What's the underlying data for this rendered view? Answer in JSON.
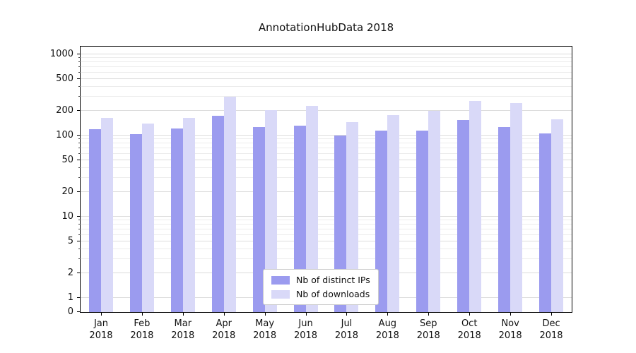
{
  "chart_data": {
    "type": "bar",
    "title": "AnnotationHubData 2018",
    "categories": [
      "Jan",
      "Feb",
      "Mar",
      "Apr",
      "May",
      "Jun",
      "Jul",
      "Aug",
      "Sep",
      "Oct",
      "Nov",
      "Dec"
    ],
    "year": "2018",
    "series": [
      {
        "name": "Nb of distinct IPs",
        "color": "#9b9bef",
        "values": [
          120,
          105,
          122,
          175,
          128,
          133,
          100,
          115,
          115,
          155,
          128,
          106
        ]
      },
      {
        "name": "Nb of downloads",
        "color": "#d9d9f8",
        "values": [
          165,
          142,
          165,
          300,
          205,
          230,
          145,
          178,
          200,
          265,
          250,
          160
        ]
      }
    ],
    "y_axis": {
      "scale": "symlog",
      "ticks": [
        0,
        1,
        2,
        5,
        10,
        20,
        50,
        100,
        200,
        500,
        1000
      ]
    },
    "grid": true,
    "legend_position": "lower-center-inside",
    "colors": {
      "grid_major": "#dcdcdc",
      "grid_minor": "#ececec",
      "axis": "#000000",
      "background": "#ffffff"
    }
  }
}
